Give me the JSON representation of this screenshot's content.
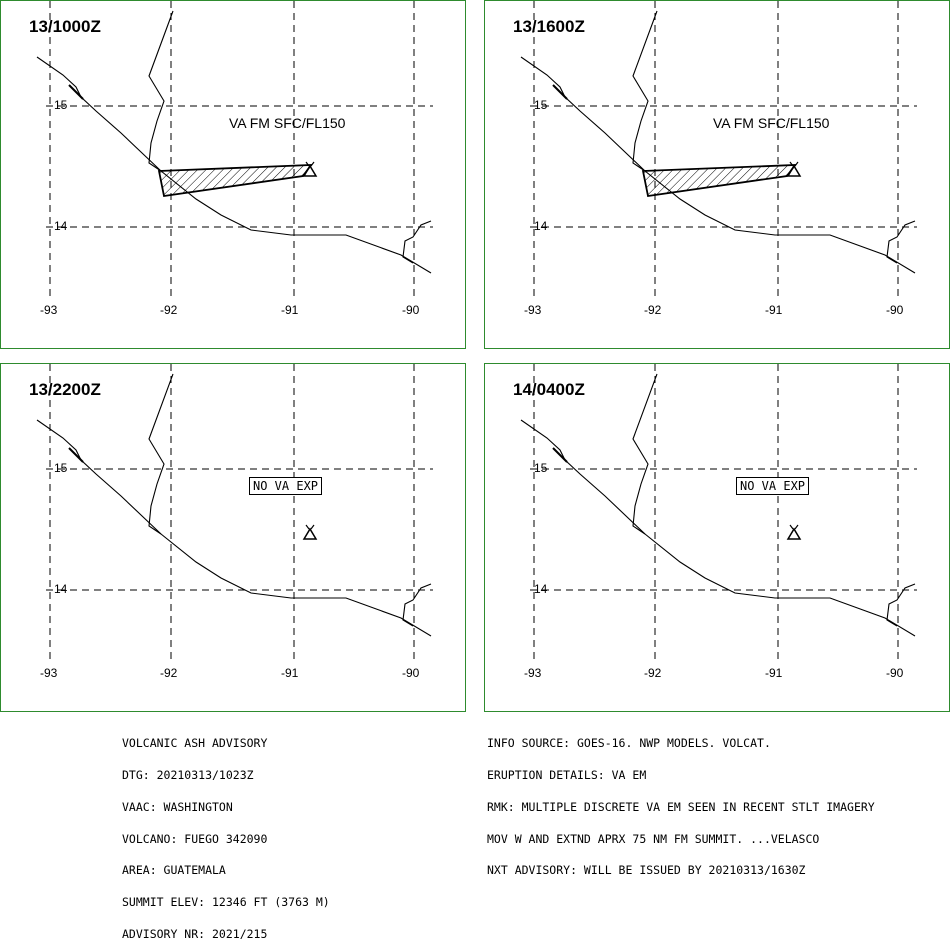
{
  "panels": [
    {
      "title": "13/1000Z",
      "label": "VA FM SFC/FL150",
      "ash": true
    },
    {
      "title": "13/1600Z",
      "label": "VA FM SFC/FL150",
      "ash": true
    },
    {
      "title": "13/2200Z",
      "label": "NO VA EXP",
      "ash": false
    },
    {
      "title": "14/0400Z",
      "label": "NO VA EXP",
      "ash": false
    }
  ],
  "axes": {
    "lon_labels": [
      "-93",
      "-92",
      "-91",
      "-90"
    ],
    "lat_labels": [
      "15",
      "14"
    ]
  },
  "advisory_left": [
    "VOLCANIC ASH ADVISORY",
    "DTG: 20210313/1023Z",
    "VAAC: WASHINGTON",
    "VOLCANO: FUEGO 342090",
    "AREA: GUATEMALA",
    "SUMMIT ELEV: 12346 FT (3763 M)",
    "ADVISORY NR: 2021/215"
  ],
  "advisory_right": [
    "INFO SOURCE: GOES-16. NWP MODELS. VOLCAT.",
    "ERUPTION DETAILS: VA EM",
    "RMK: MULTIPLE DISCRETE VA EM SEEN IN RECENT STLT IMAGERY",
    "MOV W AND EXTND APRX 75 NM FM SUMMIT. ...VELASCO",
    "NXT ADVISORY: WILL BE ISSUED BY 20210313/1630Z"
  ]
}
